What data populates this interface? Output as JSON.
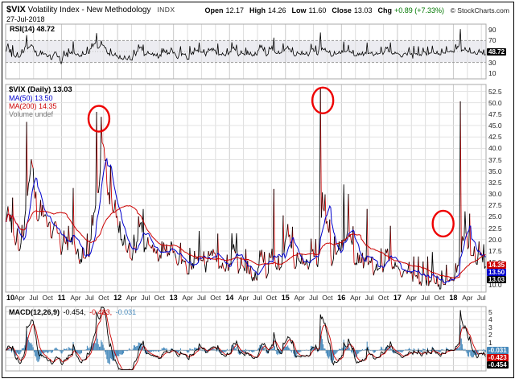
{
  "header": {
    "symbol": "$VIX",
    "name": "Volatility Index - New Methodology",
    "exchange": "INDX",
    "date": "27-Jul-2018",
    "quote": [
      {
        "label": "Open",
        "value": "12.17"
      },
      {
        "label": "High",
        "value": "14.26"
      },
      {
        "label": "Low",
        "value": "11.60"
      },
      {
        "label": "Close",
        "value": "13.03"
      },
      {
        "label": "Chg",
        "value": "+0.89 (+7.33%)"
      }
    ],
    "copyright": "© StockCharts.com"
  },
  "rsi": {
    "name": "RSI(14)",
    "value": "48.72",
    "badge": "48.72"
  },
  "main": {
    "title": "$VIX (Daily) 13.03",
    "ma50": "MA(50) 13.50",
    "ma200": "MA(200) 14.35",
    "volume": "Volume undef",
    "badges": [
      {
        "text": "14.35",
        "v": 14.35,
        "bg": "#cc0000"
      },
      {
        "text": "13.50",
        "v": 13.5,
        "bg": "#0000cc"
      },
      {
        "text": "13.03",
        "v": 13.03,
        "bg": "#000000"
      }
    ]
  },
  "macd": {
    "name": "MACD(12,26,9)",
    "v1": "-0.454,",
    "v2": "-0.423,",
    "v3": "-0.031",
    "badges": [
      {
        "text": "-0.031",
        "v": -0.031,
        "bg": "#4488bb"
      },
      {
        "text": "-0.423",
        "v": -0.423,
        "bg": "#cc0000"
      },
      {
        "text": "-0.454",
        "v": -0.454,
        "bg": "#000000"
      }
    ]
  },
  "colors": {
    "price_line": "#000000",
    "down": "#cc0000",
    "ma50": "#0000cc",
    "ma200": "#cc0000",
    "rsi_line": "#000000",
    "hist": "#4488bb",
    "annotation": "#ee0000",
    "volume_label": "#777777",
    "change_up": "#007700"
  },
  "chart_data": {
    "type": "line",
    "title": "$VIX CBOE Volatility Index, daily, with MA(50), MA(200), RSI(14), MACD(12,26,9)",
    "x_unit": "month",
    "x_start": "2010-01",
    "x_end": "2018-07",
    "last_bar": {
      "date": "27-Jul-2018",
      "open": 12.17,
      "high": 14.26,
      "low": 11.6,
      "close": 13.03,
      "change": 0.89,
      "change_pct": 7.33
    },
    "panels": {
      "rsi": {
        "label": "RSI(14)",
        "current": 48.72,
        "ylim": [
          0,
          100
        ],
        "yticks": [
          "90",
          "70",
          "50",
          "30",
          "10"
        ],
        "overbought": 70,
        "oversold": 30
      },
      "price": {
        "ylim": [
          10,
          52.5
        ],
        "yticks": [
          "52.5",
          "50.0",
          "47.5",
          "45.0",
          "42.5",
          "40.0",
          "37.5",
          "35.0",
          "32.5",
          "30.0",
          "27.5",
          "25.0",
          "22.5",
          "20.0",
          "17.5",
          "15.0",
          "12.5",
          "10.0"
        ],
        "ma50_current": 13.5,
        "ma200_current": 14.35,
        "close_current": 13.03
      },
      "macd": {
        "params": "12,26,9",
        "current": {
          "macd": -0.454,
          "signal": -0.423,
          "hist": -0.031
        },
        "ylim": [
          -2,
          5
        ],
        "yticks": [
          "5",
          "4",
          "3",
          "2",
          "1",
          "0",
          "-1",
          "-2"
        ]
      }
    },
    "x_ticks": [
      {
        "m": 0,
        "t": "10",
        "b": 1
      },
      {
        "m": 3,
        "t": "Apr"
      },
      {
        "m": 6,
        "t": "Jul"
      },
      {
        "m": 9,
        "t": "Oct"
      },
      {
        "m": 12,
        "t": "11",
        "b": 1
      },
      {
        "m": 15,
        "t": "Apr"
      },
      {
        "m": 18,
        "t": "Jul"
      },
      {
        "m": 21,
        "t": "Oct"
      },
      {
        "m": 24,
        "t": "12",
        "b": 1
      },
      {
        "m": 27,
        "t": "Apr"
      },
      {
        "m": 30,
        "t": "Jul"
      },
      {
        "m": 33,
        "t": "Oct"
      },
      {
        "m": 36,
        "t": "13",
        "b": 1
      },
      {
        "m": 39,
        "t": "Apr"
      },
      {
        "m": 42,
        "t": "Jul"
      },
      {
        "m": 45,
        "t": "Oct"
      },
      {
        "m": 48,
        "t": "14",
        "b": 1
      },
      {
        "m": 51,
        "t": "Apr"
      },
      {
        "m": 54,
        "t": "Jul"
      },
      {
        "m": 57,
        "t": "Oct"
      },
      {
        "m": 60,
        "t": "15",
        "b": 1
      },
      {
        "m": 63,
        "t": "Apr"
      },
      {
        "m": 66,
        "t": "Jul"
      },
      {
        "m": 69,
        "t": "Oct"
      },
      {
        "m": 72,
        "t": "16",
        "b": 1
      },
      {
        "m": 75,
        "t": "Apr"
      },
      {
        "m": 78,
        "t": "Jul"
      },
      {
        "m": 81,
        "t": "Oct"
      },
      {
        "m": 84,
        "t": "17",
        "b": 1
      },
      {
        "m": 87,
        "t": "Apr"
      },
      {
        "m": 90,
        "t": "Jul"
      },
      {
        "m": 93,
        "t": "Oct"
      },
      {
        "m": 96,
        "t": "18",
        "b": 1
      },
      {
        "m": 99,
        "t": "Apr"
      },
      {
        "m": 102,
        "t": "Jul"
      }
    ],
    "monthly_close": [
      24.6,
      19.5,
      17.6,
      22.0,
      32.1,
      34.5,
      23.5,
      26.1,
      23.7,
      21.2,
      23.5,
      17.8,
      19.5,
      18.4,
      17.7,
      14.8,
      15.5,
      16.5,
      25.2,
      31.6,
      43.0,
      30.0,
      27.8,
      23.4,
      19.4,
      18.4,
      15.5,
      17.2,
      24.1,
      17.1,
      18.9,
      17.5,
      15.7,
      18.6,
      15.9,
      18.0,
      14.3,
      15.5,
      12.7,
      13.5,
      16.3,
      16.9,
      13.5,
      17.0,
      16.6,
      13.8,
      13.7,
      13.7,
      18.4,
      14.0,
      13.9,
      13.4,
      11.4,
      11.6,
      17.0,
      12.0,
      16.3,
      14.0,
      13.3,
      19.2,
      21.0,
      13.3,
      15.3,
      14.6,
      13.8,
      18.2,
      12.1,
      28.4,
      24.5,
      15.1,
      16.1,
      18.2,
      20.2,
      20.6,
      14.0,
      15.7,
      14.2,
      15.6,
      11.9,
      13.4,
      13.3,
      17.1,
      13.3,
      14.0,
      12.0,
      12.9,
      12.4,
      10.8,
      10.4,
      11.2,
      10.3,
      10.6,
      9.5,
      10.2,
      11.3,
      11.0,
      13.5,
      19.9,
      20.0,
      15.9,
      15.4,
      16.1,
      13.0
    ],
    "monthly_high": [
      27.3,
      29.2,
      22.4,
      23.2,
      45.8,
      37.6,
      30.5,
      28.7,
      25.5,
      23.9,
      23.8,
      21.5,
      22.0,
      23.0,
      31.3,
      18.0,
      18.3,
      21.3,
      25.4,
      48.0,
      46.9,
      37.5,
      36.2,
      28.7,
      24.0,
      21.1,
      19.3,
      21.1,
      25.1,
      26.7,
      20.5,
      18.9,
      17.9,
      19.6,
      19.0,
      19.6,
      16.0,
      19.3,
      15.4,
      18.2,
      17.5,
      21.9,
      17.4,
      17.5,
      17.9,
      21.3,
      14.9,
      16.7,
      21.4,
      21.4,
      16.2,
      17.9,
      14.1,
      12.9,
      17.6,
      17.3,
      17.1,
      31.1,
      16.4,
      25.3,
      23.4,
      22.8,
      17.2,
      16.8,
      15.7,
      20.2,
      20.1,
      53.3,
      29.9,
      24.4,
      20.7,
      19.6,
      32.1,
      30.0,
      22.9,
      17.1,
      17.1,
      26.7,
      16.2,
      14.7,
      18.1,
      17.9,
      23.0,
      15.1,
      13.3,
      13.2,
      15.1,
      16.3,
      16.3,
      15.2,
      16.3,
      17.3,
      12.1,
      13.2,
      14.5,
      11.7,
      14.8,
      50.3,
      26.2,
      25.7,
      18.5,
      19.6,
      19.0
    ],
    "annotations": [
      {
        "m": 20.0,
        "v": 46.5,
        "label": "aug-2011-spike"
      },
      {
        "m": 68.0,
        "v": 50.5,
        "label": "aug-2015-spike"
      },
      {
        "m": 93.8,
        "v": 23.5,
        "label": "late-2017-area"
      }
    ]
  }
}
